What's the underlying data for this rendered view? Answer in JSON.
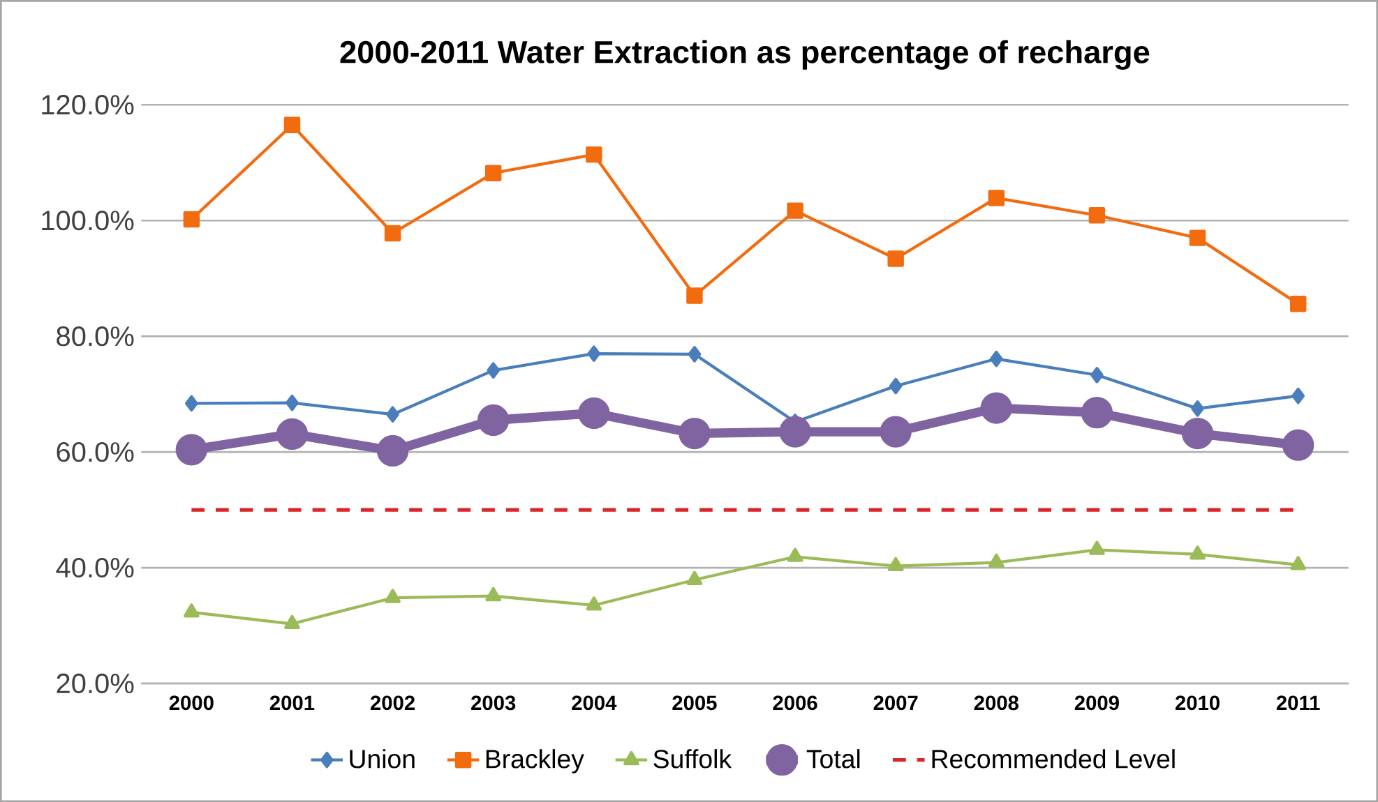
{
  "chart_data": {
    "type": "line",
    "title": "2000-2011 Water Extraction as percentage of recharge",
    "categories": [
      "2000",
      "2001",
      "2002",
      "2003",
      "2004",
      "2005",
      "2006",
      "2007",
      "2008",
      "2009",
      "2010",
      "2011"
    ],
    "series": [
      {
        "name": "Union",
        "color": "#4a7ebb",
        "marker": "diamond",
        "values": [
          68.4,
          68.5,
          66.5,
          74.1,
          77.0,
          76.9,
          65.2,
          71.4,
          76.1,
          73.3,
          67.5,
          69.7
        ]
      },
      {
        "name": "Brackley",
        "color": "#f26b0f",
        "marker": "square",
        "values": [
          100.2,
          116.5,
          97.8,
          108.2,
          111.4,
          87.0,
          101.7,
          93.4,
          103.9,
          100.9,
          97.0,
          85.6
        ]
      },
      {
        "name": "Suffolk",
        "color": "#9bbb59",
        "marker": "triangle",
        "values": [
          32.3,
          30.3,
          34.8,
          35.1,
          33.5,
          37.9,
          41.9,
          40.3,
          40.9,
          43.1,
          42.3,
          40.5
        ]
      },
      {
        "name": "Total",
        "color": "#8064a2",
        "marker": "circle",
        "values": [
          60.4,
          63.1,
          60.2,
          65.5,
          66.7,
          63.2,
          63.5,
          63.5,
          67.6,
          66.8,
          63.2,
          61.2
        ]
      },
      {
        "name": "Recommended Level",
        "color": "#d9262a",
        "marker": "none",
        "line_style": "dashed",
        "values": [
          50,
          50,
          50,
          50,
          50,
          50,
          50,
          50,
          50,
          50,
          50,
          50
        ]
      }
    ],
    "ylim": [
      20,
      120
    ],
    "yticks": [
      {
        "value": 20,
        "label": "20.0%"
      },
      {
        "value": 40,
        "label": "40.0%"
      },
      {
        "value": 60,
        "label": "60.0%"
      },
      {
        "value": 80,
        "label": "80.0%"
      },
      {
        "value": 100,
        "label": "100.0%"
      },
      {
        "value": 120,
        "label": "120.0%"
      }
    ],
    "grid": "y",
    "legend": "bottom"
  }
}
